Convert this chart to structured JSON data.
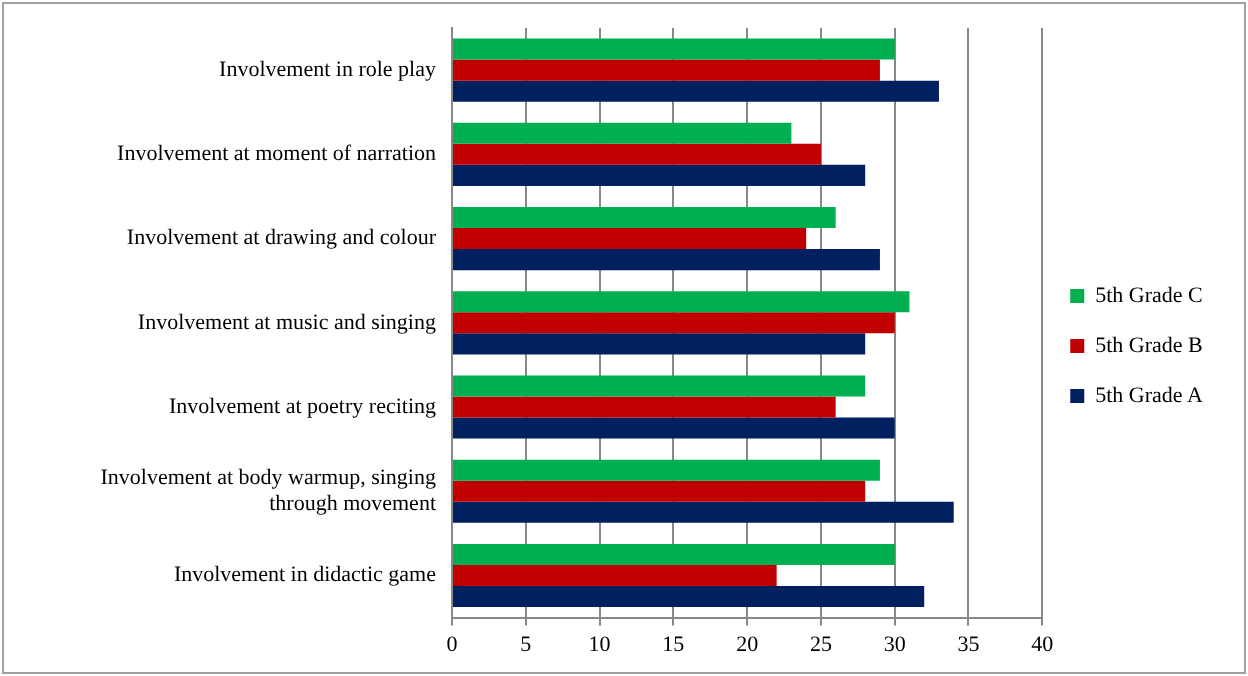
{
  "chart_data": {
    "type": "bar",
    "orientation": "horizontal",
    "categories": [
      "Involvement in role play",
      "Involvement at moment of narration",
      "Involvement at drawing and colour",
      "Involvement at music and singing",
      "Involvement at poetry reciting",
      "Involvement at body warmup, singing through movement",
      "Involvement in didactic game"
    ],
    "series": [
      {
        "name": "5th Grade C",
        "color": "#00b050",
        "values": [
          30,
          23,
          26,
          31,
          28,
          29,
          30
        ]
      },
      {
        "name": "5th Grade B",
        "color": "#c00000",
        "values": [
          29,
          25,
          24,
          30,
          26,
          28,
          22
        ]
      },
      {
        "name": "5th Grade A",
        "color": "#002060",
        "values": [
          33,
          28,
          29,
          28,
          30,
          34,
          32
        ]
      }
    ],
    "xlim": [
      0,
      40
    ],
    "xticks": [
      0,
      5,
      10,
      15,
      20,
      25,
      30,
      35,
      40
    ],
    "grid": "x",
    "legend": "right"
  }
}
